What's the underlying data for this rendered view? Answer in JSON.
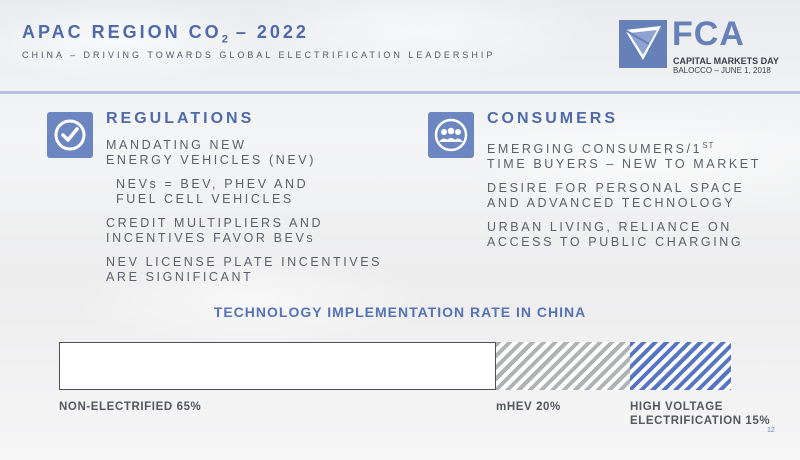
{
  "header": {
    "title_prefix": "APAC REGION CO",
    "title_sub": "2",
    "title_suffix": " – 2022",
    "subtitle": "CHINA – DRIVING TOWARDS GLOBAL ELECTRIFICATION LEADERSHIP"
  },
  "logo": {
    "text": "FCA",
    "line1": "CAPITAL MARKETS DAY",
    "line2": "BALOCCO – JUNE 1, 2018",
    "color": "#6680b8"
  },
  "regulations": {
    "heading": "REGULATIONS",
    "icon": "checkmark-icon",
    "items": [
      {
        "text": "MANDATING NEW\nENERGY VEHICLES (NEV)"
      },
      {
        "text": "NEVs = BEV, PHEV AND\nFUEL CELL VEHICLES"
      },
      {
        "text": "CREDIT MULTIPLIERS AND\nINCENTIVES FAVOR BEVs"
      },
      {
        "text": "NEV LICENSE PLATE INCENTIVES\nARE SIGNIFICANT"
      }
    ]
  },
  "consumers": {
    "heading": "CONSUMERS",
    "icon": "group-icon",
    "item1_main": "EMERGING CONSUMERS/1",
    "item1_sup": "ST",
    "item1_rest": "TIME BUYERS – NEW TO MARKET",
    "item2": "DESIRE FOR PERSONAL SPACE\nAND ADVANCED TECHNOLOGY",
    "item3": "URBAN LIVING, RELIANCE ON\nACCESS TO PUBLIC CHARGING"
  },
  "chart_data": {
    "type": "bar",
    "title": "TECHNOLOGY IMPLEMENTATION RATE IN CHINA",
    "stacked": true,
    "orientation": "horizontal",
    "categories": [
      "NON-ELECTRIFIED",
      "mHEV",
      "HIGH VOLTAGE ELECTRIFICATION"
    ],
    "values": [
      65,
      20,
      15
    ],
    "labels": [
      "NON-ELECTRIFIED 65%",
      "mHEV 20%",
      "HIGH VOLTAGE\nELECTRIFICATION 15%"
    ],
    "colors": [
      "#ffffff",
      "#b0b2b6",
      "#5676c4"
    ]
  },
  "page_number": "12",
  "colors": {
    "accent": "#4e6aa8",
    "icon_bg": "#6c86c2",
    "divider": "#b6c1dd"
  }
}
